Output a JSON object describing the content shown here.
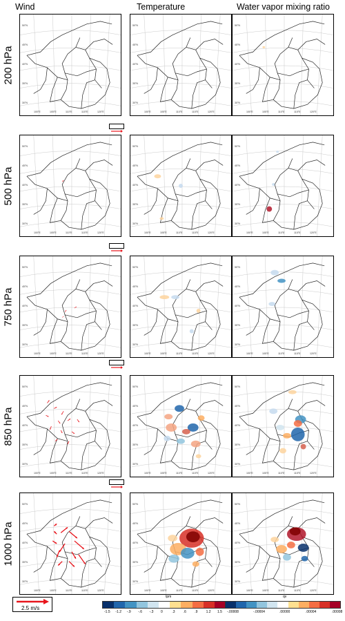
{
  "columns": {
    "wind": "Wind",
    "temperature": "Temperature",
    "vapor": "Water vapor mixing ratio"
  },
  "rows": [
    "200 hPa",
    "500 hPa",
    "750 hPa",
    "850 hPa",
    "1000 hPa"
  ],
  "lat_ticks": [
    "50°N",
    "45°N",
    "40°N",
    "35°N",
    "30°N"
  ],
  "lon_ticks": [
    "100°E",
    "105°E",
    "110°E",
    "115°E",
    "120°E"
  ],
  "wind_ref_small": "2.5 m/s",
  "wind_ref_big": "2.5 m/s",
  "temp_colorbar": {
    "title": "tpm",
    "labels": [
      "-1.5",
      "-1.2",
      "-.9",
      "-.6",
      "-.3",
      "0",
      ".3",
      ".6",
      ".9",
      "1.2",
      "1.5"
    ],
    "colors": [
      "#08306b",
      "#2166ac",
      "#4393c3",
      "#92c5de",
      "#d1e5f0",
      "#ffffff",
      "#fee090",
      "#fdae61",
      "#f46d43",
      "#d73027",
      "#a50026"
    ]
  },
  "qv_colorbar": {
    "title": "qv",
    "labels": [
      "-.00008",
      "-.00004",
      ".00000",
      ".00004",
      ".00008"
    ],
    "colors": [
      "#08306b",
      "#2166ac",
      "#4393c3",
      "#92c5de",
      "#d1e5f0",
      "#ffffff",
      "#fee090",
      "#fdae61",
      "#f46d43",
      "#d73027",
      "#a50026"
    ]
  },
  "colors": {
    "wind_vector": "#e8141b",
    "border": "#000000",
    "grid": "#bbbbbb"
  }
}
